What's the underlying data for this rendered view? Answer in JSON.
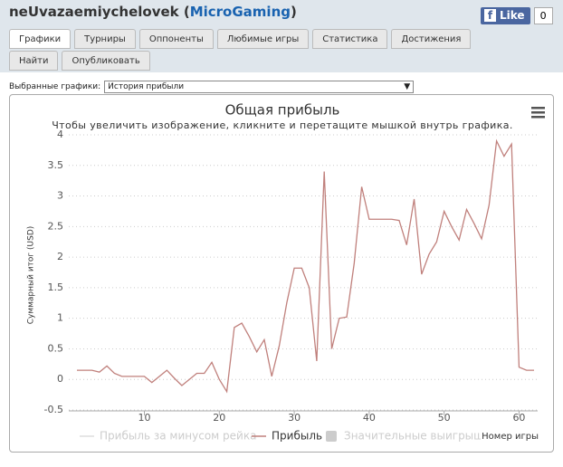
{
  "header": {
    "user": "neUvazaemiychelovek (",
    "network": "MicroGaming",
    "user_end": ")",
    "like": "Like",
    "like_count": "0"
  },
  "tabs": [
    "Графики",
    "Турниры",
    "Оппоненты",
    "Любимые игры",
    "Статистика",
    "Достижения",
    "Найти",
    "Опубликовать"
  ],
  "selector": {
    "label": "Выбранные графики:",
    "value": "История прибыли"
  },
  "chart_data": {
    "type": "line",
    "title": "Общая прибыль",
    "subtitle": "Чтобы увеличить изображение, кликните и перетащите мышкой внутрь графика.",
    "y_label": "Суммарный итог (USD)",
    "x_label": "Номер игры",
    "x": [
      1,
      2,
      3,
      4,
      5,
      6,
      7,
      8,
      9,
      10,
      11,
      12,
      13,
      14,
      15,
      16,
      17,
      18,
      19,
      20,
      21,
      22,
      23,
      24,
      25,
      26,
      27,
      28,
      29,
      30,
      31,
      32,
      33,
      34,
      35,
      36,
      37,
      38,
      39,
      40,
      41,
      42,
      43,
      44,
      45,
      46,
      47,
      48,
      49,
      50,
      51,
      52,
      53,
      54,
      55,
      56,
      57,
      58,
      59,
      60,
      61,
      62
    ],
    "series": [
      {
        "name": "Прибыль за минусом рейка",
        "color": "#dddddd",
        "kind": "line",
        "hidden": true
      },
      {
        "name": "Прибыль",
        "color": "#c0807c",
        "kind": "line",
        "values": [
          0.15,
          0.15,
          0.15,
          0.12,
          0.22,
          0.1,
          0.05,
          0.05,
          0.05,
          0.05,
          -0.05,
          0.05,
          0.15,
          0.02,
          -0.1,
          0.0,
          0.1,
          0.1,
          0.28,
          0.0,
          -0.2,
          0.85,
          0.92,
          0.7,
          0.45,
          0.65,
          0.05,
          0.55,
          1.25,
          1.82,
          1.82,
          1.5,
          0.3,
          3.4,
          0.5,
          1.0,
          1.02,
          1.9,
          3.15,
          2.62,
          2.62,
          2.62,
          2.62,
          2.6,
          2.2,
          2.95,
          1.72,
          2.05,
          2.25,
          2.75,
          2.5,
          2.28,
          2.78,
          2.55,
          2.3,
          2.85,
          3.9,
          3.65,
          3.85,
          0.2,
          0.15,
          0.15
        ]
      },
      {
        "name": "Значительные выигрыши",
        "color": "#cccccc",
        "kind": "column",
        "hidden": true
      }
    ],
    "xlim": [
      1,
      62
    ],
    "xticks": [
      10,
      20,
      30,
      40,
      50,
      60
    ],
    "ylim": [
      -0.5,
      4
    ],
    "yticks": [
      -0.5,
      0,
      0.5,
      1,
      1.5,
      2,
      2.5,
      3,
      3.5,
      4
    ],
    "grid": true
  }
}
